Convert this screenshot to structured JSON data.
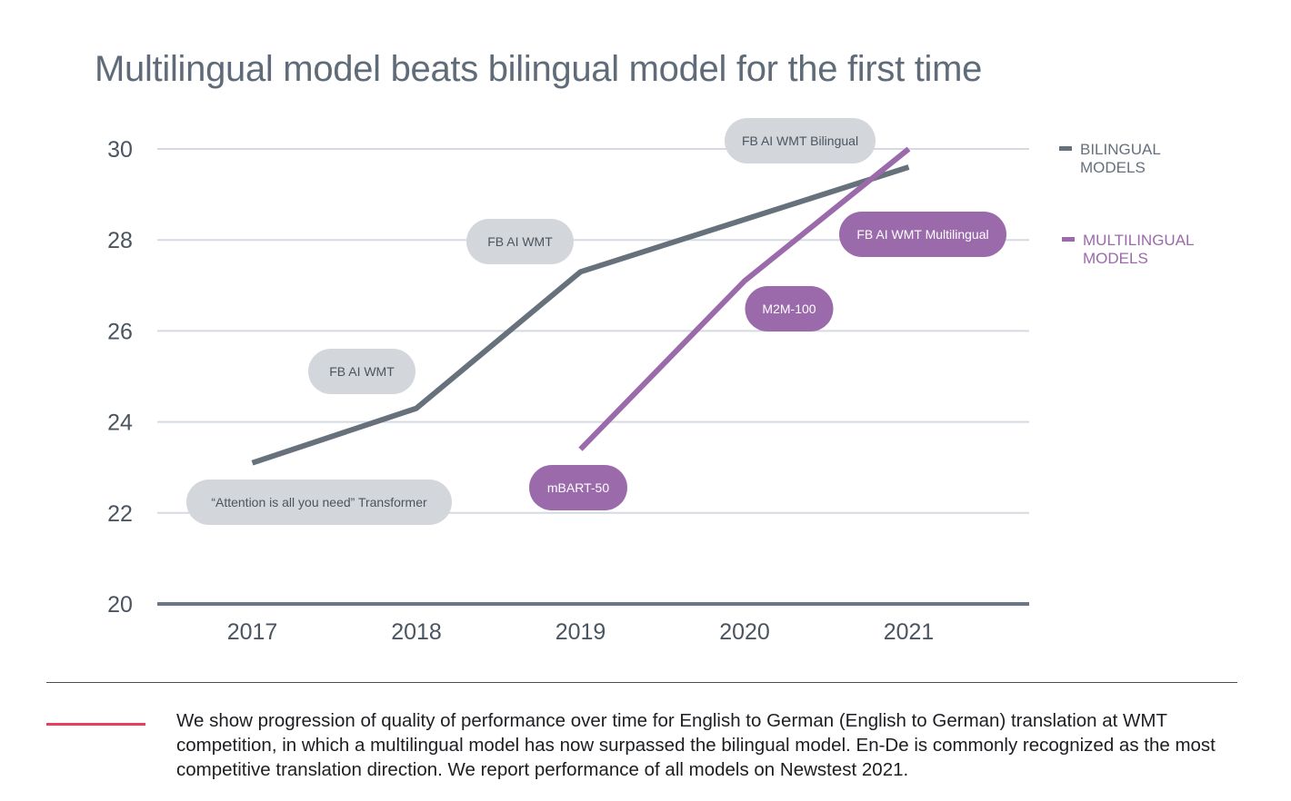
{
  "colors": {
    "title": "#5f6b78",
    "bilingual": "#66717c",
    "multilingual": "#9b6aab",
    "gray_pill": "#d3d6da",
    "gray_pill_text": "#4b5560",
    "purple_pill": "#9b6aab",
    "purple_pill_text": "#ffffff",
    "grid": "#d5dae0",
    "axis": "#6b7684",
    "caption_accent": "#e8405c"
  },
  "chart_data": {
    "type": "line",
    "title": "Multilingual model beats bilingual model for the first time",
    "xlabel": "",
    "ylabel": "",
    "x": [
      "2017",
      "2018",
      "2019",
      "2020",
      "2021"
    ],
    "ylim": [
      20,
      30
    ],
    "yticks": [
      "20",
      "22",
      "24",
      "26",
      "28",
      "30"
    ],
    "grid": true,
    "legend_position": "right",
    "series": [
      {
        "name": "BILINGUAL MODELS",
        "color": "#66717c",
        "points": [
          {
            "x": 2017,
            "y": 23.1
          },
          {
            "x": 2018,
            "y": 24.3
          },
          {
            "x": 2019,
            "y": 27.3
          },
          {
            "x": 2021,
            "y": 29.6
          }
        ]
      },
      {
        "name": "MULTILINGUAL MODELS",
        "color": "#9b6aab",
        "points": [
          {
            "x": 2019,
            "y": 23.4
          },
          {
            "x": 2020,
            "y": 27.1
          },
          {
            "x": 2021,
            "y": 30.0
          }
        ]
      }
    ],
    "legend": [
      {
        "line1": "BILINGUAL",
        "line2": "MODELS",
        "color": "#66717c"
      },
      {
        "line1": "MULTILINGUAL",
        "line2": "MODELS",
        "color": "#9b6aab"
      }
    ],
    "annotations": [
      {
        "text": "“Attention is all you need” Transformer",
        "style": "gray"
      },
      {
        "text": "FB AI WMT",
        "style": "gray"
      },
      {
        "text": "FB AI WMT",
        "style": "gray"
      },
      {
        "text": "FB AI WMT Bilingual",
        "style": "gray"
      },
      {
        "text": "mBART-50",
        "style": "purple"
      },
      {
        "text": "M2M-100",
        "style": "purple"
      },
      {
        "text": "FB AI WMT Multilingual",
        "style": "purple"
      }
    ]
  },
  "caption": {
    "text": "We show progression of quality of performance over time for English to German (English to German) translation at WMT competition, in which a multilingual model has now surpassed the bilingual model. En-De is commonly recognized as the most competitive translation direction. We report performance of all models on Newstest 2021."
  }
}
